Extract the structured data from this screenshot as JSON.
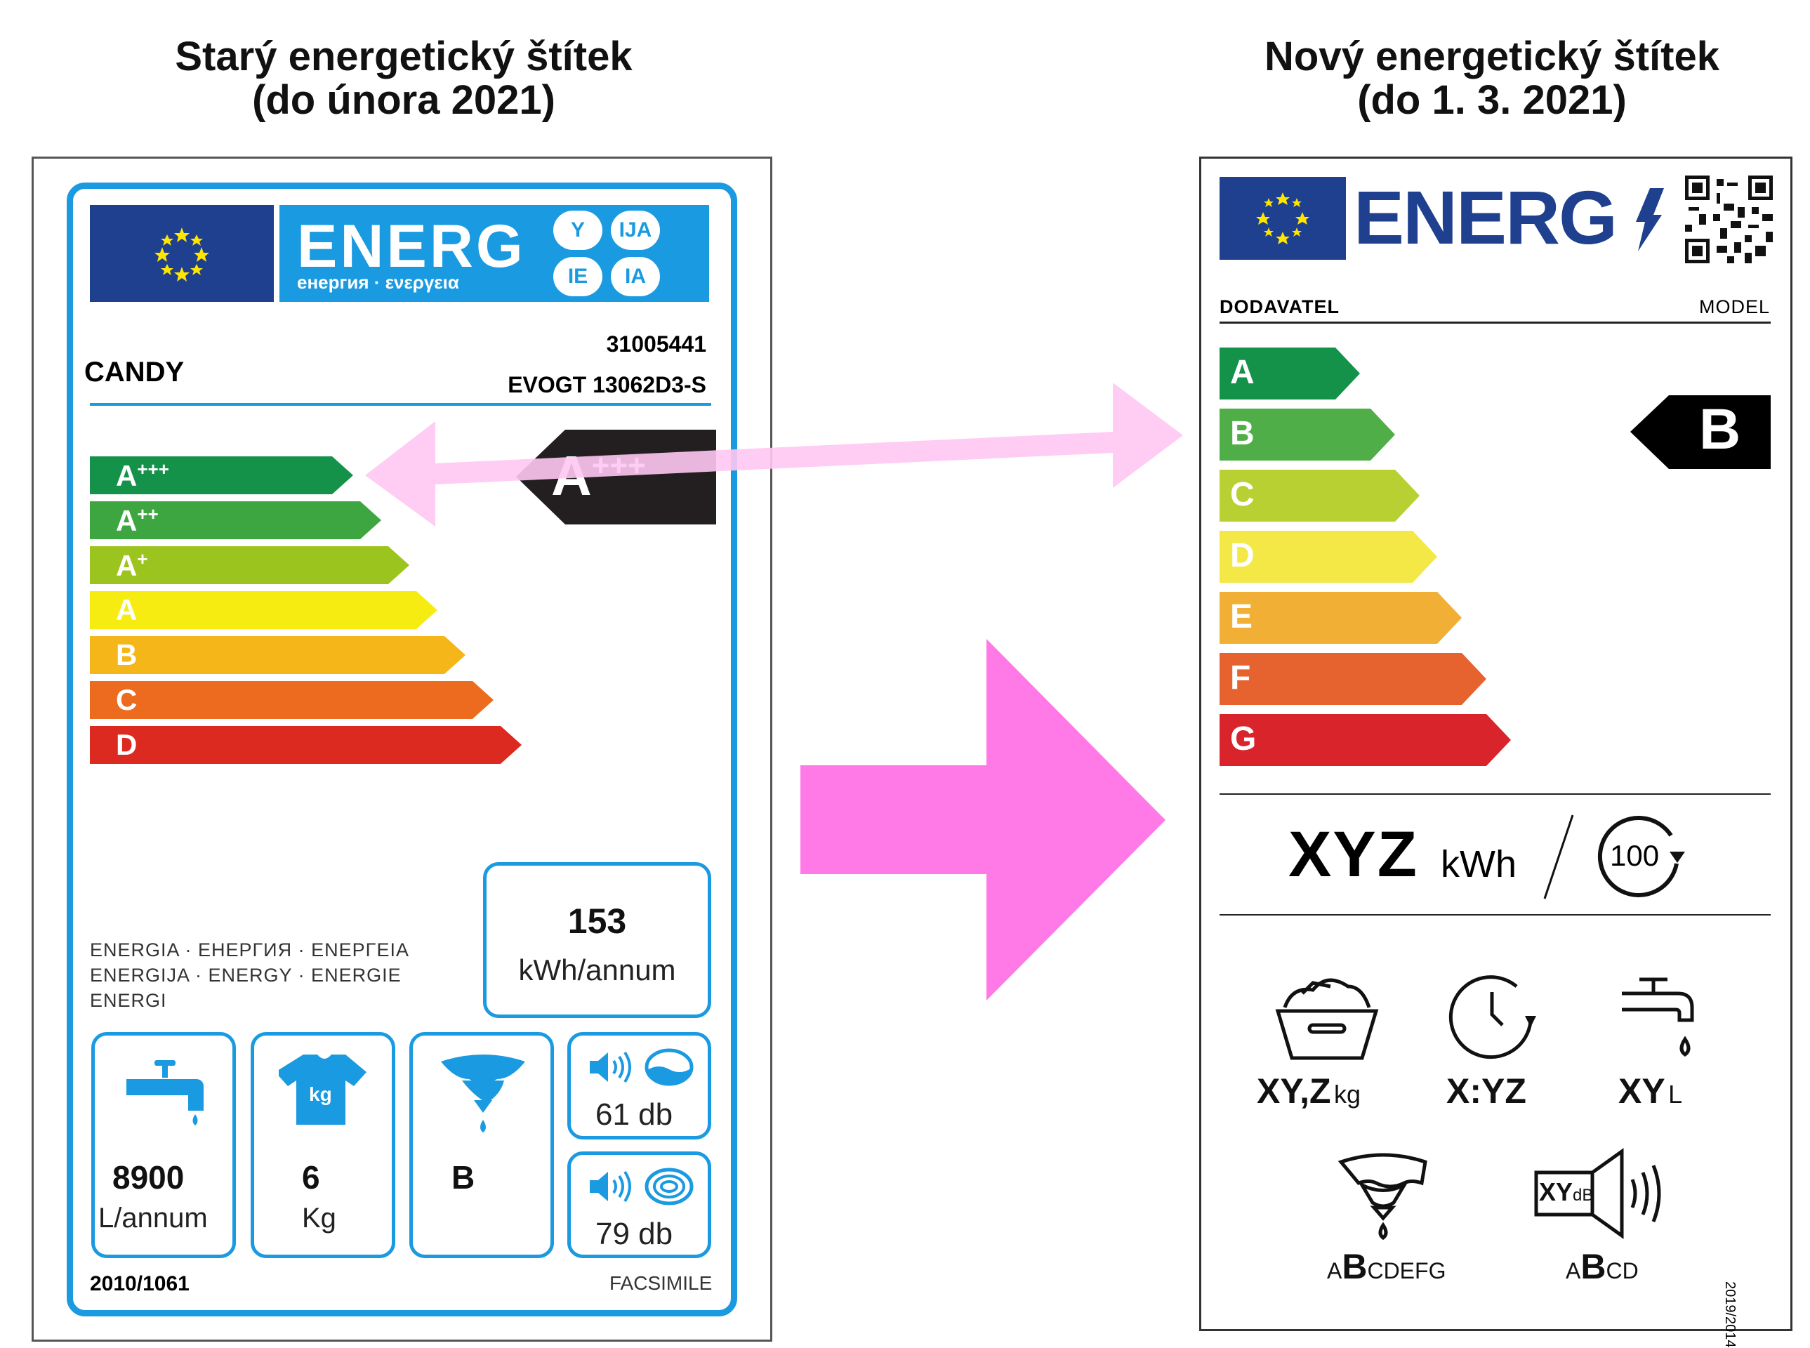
{
  "headings": {
    "old_line1": "Starý energetický štítek",
    "old_line2": "(do února 2021)",
    "new_line1": "Nový energetický štítek",
    "new_line2": "(do 1. 3. 2021)"
  },
  "old_label": {
    "energ_word": "ENERG",
    "energ_sub": "енергия · ενεργεια",
    "bubbles": [
      "Y",
      "IJA",
      "IE",
      "IA"
    ],
    "brand": "CANDY",
    "code": "31005441",
    "model": "EVOGT 13062D3-S",
    "classes": [
      {
        "base": "A",
        "sup": "+++",
        "color": "#15924a"
      },
      {
        "base": "A",
        "sup": "++",
        "color": "#3ea640"
      },
      {
        "base": "A",
        "sup": "+",
        "color": "#9cc41e"
      },
      {
        "base": "A",
        "sup": "",
        "color": "#f7ec12"
      },
      {
        "base": "B",
        "sup": "",
        "color": "#f4b619"
      },
      {
        "base": "C",
        "sup": "",
        "color": "#ec6b1e"
      },
      {
        "base": "D",
        "sup": "",
        "color": "#dc2a20"
      }
    ],
    "rating_base": "A",
    "rating_sup": "+++",
    "energy_text": [
      "ENERGIA · ЕНЕРГИЯ · ΕΝΕΡΓΕΙΑ",
      "ENERGIJA · ENERGY · ENERGIE",
      "ENERGI"
    ],
    "kwh_value": "153",
    "kwh_unit": "kWh/annum",
    "water_value": "8900",
    "water_unit": "L/annum",
    "capacity_value": "6",
    "capacity_unit": "Kg",
    "capacity_icon_text": "kg",
    "spin_value": "B",
    "noise_wash": "61 db",
    "noise_spin": "79 db",
    "regulation": "2010/1061",
    "facsimile": "FACSIMILE"
  },
  "new_label": {
    "energ_word": "ENERG",
    "supplier": "DODAVATEL",
    "model": "MODEL",
    "classes": [
      {
        "letter": "A",
        "color": "#15924a"
      },
      {
        "letter": "B",
        "color": "#4fae47"
      },
      {
        "letter": "C",
        "color": "#b8d031"
      },
      {
        "letter": "D",
        "color": "#f3e845"
      },
      {
        "letter": "E",
        "color": "#f1af36"
      },
      {
        "letter": "F",
        "color": "#e6632f"
      },
      {
        "letter": "G",
        "color": "#d9242b"
      }
    ],
    "rating": "B",
    "energy_value": "XYZ",
    "energy_unit": "kWh",
    "cycles": "100",
    "capacity_value": "XY,Z",
    "capacity_unit": "kg",
    "duration": "X:YZ",
    "water_value": "XY",
    "water_unit": "L",
    "spin_prefix": "A",
    "spin_class": "B",
    "spin_suffix": "CDEFG",
    "noise_value": "XY",
    "noise_unit": "dB",
    "noise_prefix": "A",
    "noise_class": "B",
    "noise_suffix": "CD",
    "regulation": "2019/2014"
  },
  "colors": {
    "old_blue": "#1a9ae0",
    "eu_blue": "#1f3f8f",
    "arrow_pink": "#ff7ae6",
    "arrow_light_pink": "#ffc8f2"
  }
}
